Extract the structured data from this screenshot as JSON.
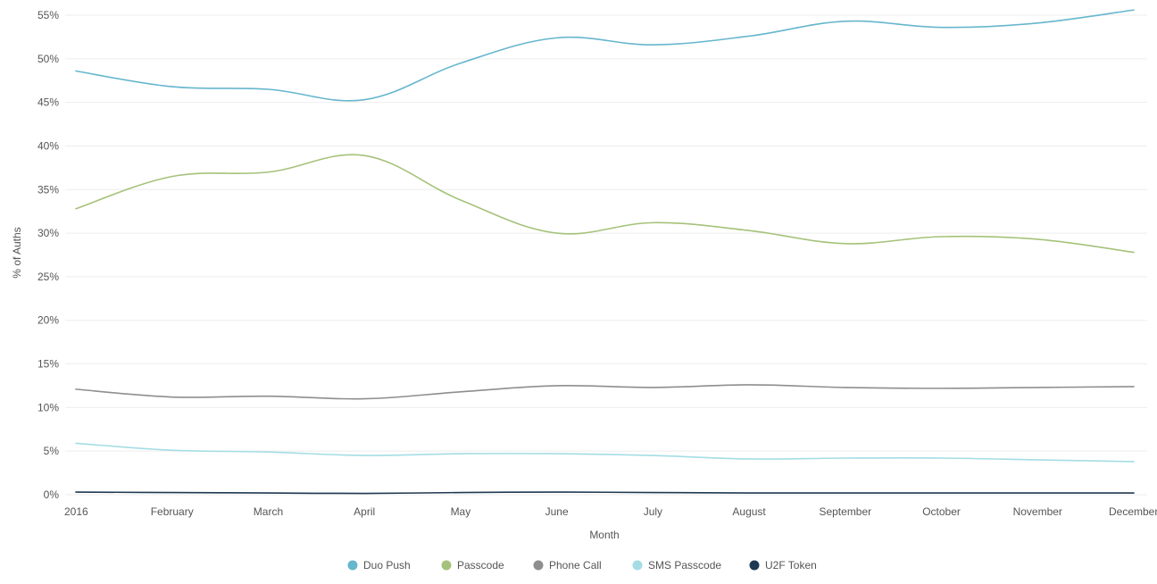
{
  "chart_data": {
    "type": "line",
    "xlabel": "Month",
    "ylabel": "% of Auths",
    "ylim": [
      0,
      55
    ],
    "y_ticks": [
      "0%",
      "5%",
      "10%",
      "15%",
      "20%",
      "25%",
      "30%",
      "35%",
      "40%",
      "45%",
      "50%",
      "55%"
    ],
    "categories": [
      "2016",
      "February",
      "March",
      "April",
      "May",
      "June",
      "July",
      "August",
      "September",
      "October",
      "November",
      "December"
    ],
    "legend_position": "bottom-center",
    "grid": true,
    "series": [
      {
        "name": "Duo Push",
        "color": "#66b6cd",
        "values": [
          48.6,
          46.8,
          46.5,
          45.3,
          49.5,
          52.4,
          51.6,
          52.6,
          54.3,
          53.6,
          54.1,
          55.6
        ]
      },
      {
        "name": "Passcode",
        "color": "#a5c27a",
        "values": [
          32.8,
          36.5,
          37.0,
          38.9,
          33.8,
          30.0,
          31.2,
          30.3,
          28.8,
          29.6,
          29.3,
          27.8
        ]
      },
      {
        "name": "Phone Call",
        "color": "#8e8e8e",
        "values": [
          12.1,
          11.2,
          11.3,
          11.0,
          11.8,
          12.5,
          12.3,
          12.6,
          12.3,
          12.2,
          12.3,
          12.4
        ]
      },
      {
        "name": "SMS Passcode",
        "color": "#a4dde5",
        "values": [
          5.9,
          5.1,
          4.9,
          4.5,
          4.7,
          4.7,
          4.5,
          4.1,
          4.2,
          4.2,
          4.0,
          3.8
        ]
      },
      {
        "name": "U2F Token",
        "color": "#1f3a52",
        "values": [
          0.3,
          0.25,
          0.2,
          0.15,
          0.25,
          0.3,
          0.25,
          0.2,
          0.2,
          0.2,
          0.2,
          0.2
        ]
      }
    ]
  }
}
